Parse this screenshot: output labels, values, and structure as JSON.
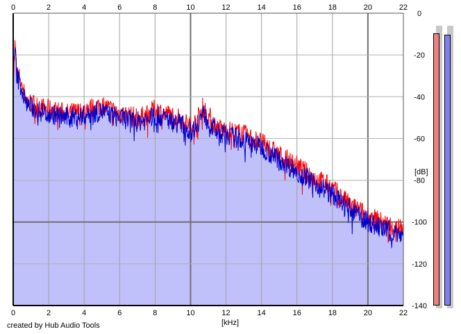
{
  "credit": "created by Hub Audio Tools",
  "chart_data": {
    "type": "area",
    "title": "",
    "xlabel": "[kHz]",
    "ylabel": "[dB]",
    "xlim": [
      0,
      22
    ],
    "ylim": [
      -140,
      0
    ],
    "x_ticks": [
      0,
      2,
      4,
      6,
      8,
      10,
      12,
      14,
      16,
      18,
      20,
      22
    ],
    "y_ticks": [
      0,
      -20,
      -40,
      -60,
      -80,
      -100,
      -120,
      -140
    ],
    "grid": true,
    "x": [
      0,
      0.1,
      0.2,
      0.4,
      0.6,
      0.8,
      1,
      1.5,
      2,
      3,
      4,
      4.5,
      5,
      5.5,
      6,
      7,
      7.5,
      8,
      8.5,
      9,
      9.5,
      10,
      10.3,
      10.7,
      11,
      11.5,
      12,
      13,
      14,
      15,
      16,
      17,
      17.5,
      18,
      19,
      20,
      21,
      22
    ],
    "series": [
      {
        "color": "#ff0000",
        "values": [
          -35,
          -15,
          -28,
          -32,
          -38,
          -42,
          -43,
          -45,
          -46,
          -48,
          -47,
          -45,
          -44,
          -46,
          -48,
          -50,
          -49,
          -46,
          -48,
          -49,
          -51,
          -54,
          -52,
          -45,
          -49,
          -55,
          -56,
          -58,
          -62,
          -68,
          -73,
          -79,
          -81,
          -84,
          -92,
          -97,
          -101,
          -103
        ]
      },
      {
        "color": "#0000cc",
        "values": [
          -33,
          -16,
          -30,
          -34,
          -40,
          -44,
          -45,
          -47,
          -48,
          -50,
          -49,
          -48,
          -47,
          -49,
          -50,
          -52,
          -51,
          -49,
          -50,
          -52,
          -53,
          -57,
          -54,
          -48,
          -52,
          -57,
          -58,
          -61,
          -64,
          -70,
          -76,
          -81,
          -84,
          -87,
          -94,
          -100,
          -104,
          -106
        ]
      }
    ],
    "level_meters": {
      "left_db": -5,
      "right_db": -6,
      "colors": [
        "#f08080",
        "#8080f0"
      ]
    },
    "fill_color": "#c0c0fa"
  }
}
